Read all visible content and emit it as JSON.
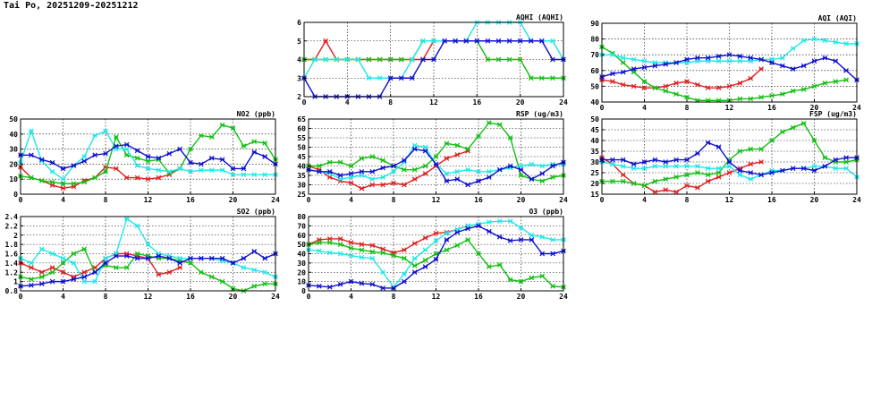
{
  "page": {
    "title": "Tai Po, 20251209-20251212"
  },
  "colors": {
    "s1": "#e02020",
    "s2": "#10c010",
    "s3": "#20e8e8",
    "s4": "#1010d0"
  },
  "chart_data": [
    {
      "id": "aqhi",
      "type": "line",
      "title": "AQHI (AQHI)",
      "xlim": [
        0,
        24
      ],
      "ylim": [
        2,
        6
      ],
      "xticks": [
        0,
        4,
        8,
        12,
        16,
        20,
        24
      ],
      "yticks": [
        2,
        3,
        4,
        5,
        6
      ],
      "series": [
        {
          "color": "s1",
          "values": [
            4,
            4,
            5,
            4,
            4,
            4,
            4,
            4,
            4,
            4,
            4,
            4,
            5,
            5,
            5,
            5
          ]
        },
        {
          "color": "s2",
          "values": [
            4,
            4,
            4,
            4,
            4,
            4,
            4,
            4,
            4,
            4,
            4,
            5,
            5,
            5,
            5,
            5,
            5,
            4,
            4,
            4,
            4,
            3,
            3,
            3,
            3
          ]
        },
        {
          "color": "s3",
          "values": [
            3,
            4,
            4,
            4,
            4,
            4,
            3,
            3,
            3,
            3,
            4,
            5,
            5,
            5,
            5,
            5,
            6,
            6,
            6,
            6,
            6,
            5,
            5,
            5,
            4
          ]
        },
        {
          "color": "s4",
          "values": [
            3,
            2,
            2,
            2,
            2,
            2,
            2,
            2,
            3,
            3,
            3,
            4,
            4,
            5,
            5,
            5,
            5,
            5,
            5,
            5,
            5,
            5,
            5,
            4,
            4
          ]
        }
      ]
    },
    {
      "id": "aqi",
      "type": "line",
      "title": "AQI (AQI)",
      "xlim": [
        0,
        24
      ],
      "ylim": [
        40,
        90
      ],
      "xticks": [
        0,
        4,
        8,
        12,
        16,
        20,
        24
      ],
      "yticks": [
        40,
        50,
        60,
        70,
        80,
        90
      ],
      "series": [
        {
          "color": "s1",
          "values": [
            54,
            53,
            51,
            50,
            49,
            49,
            50,
            52,
            53,
            51,
            49,
            49,
            50,
            52,
            55,
            61
          ]
        },
        {
          "color": "s2",
          "values": [
            75,
            71,
            65,
            59,
            53,
            49,
            47,
            45,
            43,
            41,
            41,
            41,
            41,
            42,
            42,
            43,
            44,
            45,
            47,
            48,
            50,
            52,
            53,
            54
          ]
        },
        {
          "color": "s3",
          "values": [
            70,
            70,
            68,
            67,
            66,
            65,
            65,
            65,
            65,
            66,
            66,
            66,
            66,
            66,
            66,
            67,
            67,
            68,
            74,
            79,
            80,
            79,
            78,
            77,
            77
          ]
        },
        {
          "color": "s4",
          "values": [
            56,
            58,
            59,
            61,
            62,
            63,
            64,
            65,
            67,
            68,
            68,
            69,
            70,
            69,
            68,
            67,
            65,
            63,
            61,
            63,
            66,
            68,
            66,
            60,
            54
          ]
        }
      ]
    },
    {
      "id": "no2",
      "type": "line",
      "title": "NO2 (ppb)",
      "xlim": [
        0,
        24
      ],
      "ylim": [
        0,
        50
      ],
      "xticks": [
        0,
        4,
        8,
        12,
        16,
        20,
        24
      ],
      "yticks": [
        0,
        10,
        20,
        30,
        40,
        50
      ],
      "series": [
        {
          "color": "s1",
          "values": [
            18,
            11,
            9,
            6,
            4,
            5,
            9,
            11,
            18,
            17,
            11,
            11,
            10,
            11,
            13,
            17
          ]
        },
        {
          "color": "s2",
          "values": [
            12,
            11,
            9,
            8,
            7,
            7,
            8,
            11,
            15,
            38,
            26,
            24,
            22,
            23,
            14,
            17,
            30,
            39,
            38,
            46,
            44,
            32,
            35,
            34,
            23
          ]
        },
        {
          "color": "s3",
          "values": [
            21,
            42,
            22,
            15,
            10,
            19,
            25,
            39,
            42,
            30,
            30,
            19,
            17,
            16,
            15,
            17,
            15,
            16,
            16,
            16,
            13,
            13,
            13,
            13,
            13
          ]
        },
        {
          "color": "s4",
          "values": [
            26,
            26,
            23,
            21,
            17,
            19,
            22,
            26,
            27,
            32,
            33,
            29,
            25,
            24,
            27,
            30,
            21,
            20,
            24,
            23,
            17,
            17,
            28,
            25,
            20
          ]
        }
      ]
    },
    {
      "id": "rsp",
      "type": "line",
      "title": "RSP (ug/m3)",
      "xlim": [
        0,
        24
      ],
      "ylim": [
        25,
        65
      ],
      "xticks": [
        0,
        4,
        8,
        12,
        16,
        20,
        24
      ],
      "yticks": [
        25,
        30,
        35,
        40,
        45,
        50,
        55,
        60,
        65
      ],
      "series": [
        {
          "color": "s1",
          "values": [
            40,
            38,
            34,
            32,
            31,
            28,
            30,
            30,
            31,
            30,
            33,
            36,
            40,
            44,
            46,
            48
          ]
        },
        {
          "color": "s2",
          "values": [
            40,
            40,
            42,
            42,
            40,
            44,
            45,
            43,
            40,
            38,
            38,
            40,
            45,
            52,
            51,
            49,
            56,
            63,
            62,
            55,
            35,
            33,
            32,
            34,
            35
          ]
        },
        {
          "color": "s3",
          "values": [
            38,
            37,
            36,
            33,
            34,
            35,
            33,
            34,
            37,
            42,
            51,
            50,
            41,
            36,
            37,
            38,
            37,
            37,
            38,
            39,
            40,
            41,
            40,
            41,
            41
          ]
        },
        {
          "color": "s4",
          "values": [
            38,
            37,
            37,
            35,
            36,
            37,
            37,
            39,
            40,
            43,
            49,
            48,
            41,
            32,
            33,
            30,
            32,
            34,
            38,
            40,
            38,
            33,
            36,
            40,
            42
          ]
        }
      ]
    },
    {
      "id": "fsp",
      "type": "line",
      "title": "FSP (ug/m3)",
      "xlim": [
        0,
        24
      ],
      "ylim": [
        15,
        50
      ],
      "xticks": [
        0,
        4,
        8,
        12,
        16,
        20,
        24
      ],
      "yticks": [
        15,
        20,
        25,
        30,
        35,
        40,
        45,
        50
      ],
      "series": [
        {
          "color": "s1",
          "values": [
            32,
            29,
            24,
            20,
            19,
            16,
            17,
            16,
            19,
            18,
            21,
            23,
            25,
            27,
            29,
            30
          ]
        },
        {
          "color": "s2",
          "values": [
            21,
            21,
            21,
            20,
            19,
            21,
            22,
            23,
            24,
            25,
            24,
            25,
            31,
            35,
            36,
            36,
            40,
            44,
            46,
            48,
            40,
            32,
            30,
            30,
            31
          ]
        },
        {
          "color": "s3",
          "values": [
            30,
            29,
            28,
            27,
            27,
            28,
            28,
            28,
            28,
            28,
            27,
            27,
            28,
            24,
            22,
            24,
            26,
            26,
            27,
            27,
            28,
            28,
            27,
            27,
            23
          ]
        },
        {
          "color": "s4",
          "values": [
            31,
            31,
            31,
            29,
            30,
            31,
            30,
            31,
            31,
            34,
            39,
            37,
            30,
            26,
            25,
            24,
            25,
            26,
            27,
            27,
            26,
            28,
            31,
            32,
            32
          ]
        }
      ]
    },
    {
      "id": "so2",
      "type": "line",
      "title": "SO2 (ppb)",
      "xlim": [
        0,
        24
      ],
      "ylim": [
        0.8,
        2.4
      ],
      "xticks": [
        0,
        4,
        8,
        12,
        16,
        20,
        24
      ],
      "yticks": [
        0.8,
        1.0,
        1.2,
        1.4,
        1.6,
        1.8,
        2.0,
        2.2,
        2.4
      ],
      "series": [
        {
          "color": "s1",
          "values": [
            1.4,
            1.3,
            1.2,
            1.3,
            1.2,
            1.1,
            1.2,
            1.3,
            1.5,
            1.6,
            1.6,
            1.55,
            1.5,
            1.15,
            1.2,
            1.3
          ]
        },
        {
          "color": "s2",
          "values": [
            1.1,
            1.05,
            1.1,
            1.2,
            1.4,
            1.6,
            1.7,
            1.2,
            1.35,
            1.3,
            1.3,
            1.6,
            1.55,
            1.5,
            1.5,
            1.45,
            1.4,
            1.2,
            1.1,
            1.0,
            0.85,
            0.8,
            0.9,
            0.95,
            0.95
          ]
        },
        {
          "color": "s3",
          "values": [
            1.5,
            1.4,
            1.7,
            1.6,
            1.5,
            1.4,
            1.0,
            1.0,
            1.5,
            1.6,
            2.35,
            2.2,
            1.8,
            1.6,
            1.55,
            1.5,
            1.5,
            1.5,
            1.5,
            1.45,
            1.4,
            1.3,
            1.25,
            1.2,
            1.1
          ]
        },
        {
          "color": "s4",
          "values": [
            0.9,
            0.92,
            0.95,
            1.0,
            1.0,
            1.05,
            1.1,
            1.2,
            1.4,
            1.55,
            1.55,
            1.5,
            1.5,
            1.55,
            1.5,
            1.4,
            1.5,
            1.5,
            1.5,
            1.5,
            1.4,
            1.5,
            1.65,
            1.5,
            1.6
          ]
        }
      ]
    },
    {
      "id": "o3",
      "type": "line",
      "title": "O3 (ppb)",
      "xlim": [
        0,
        24
      ],
      "ylim": [
        0,
        80
      ],
      "xticks": [
        0,
        4,
        8,
        12,
        16,
        20,
        24
      ],
      "yticks": [
        0,
        10,
        20,
        30,
        40,
        50,
        60,
        70,
        80
      ],
      "series": [
        {
          "color": "s1",
          "values": [
            50,
            55,
            56,
            56,
            52,
            50,
            49,
            45,
            41,
            44,
            51,
            57,
            62,
            63,
            66,
            70
          ]
        },
        {
          "color": "s2",
          "values": [
            50,
            52,
            52,
            50,
            46,
            44,
            42,
            41,
            38,
            35,
            27,
            33,
            40,
            44,
            49,
            55,
            40,
            26,
            28,
            12,
            10,
            14,
            16,
            5,
            4
          ]
        },
        {
          "color": "s3",
          "values": [
            44,
            43,
            41,
            40,
            38,
            36,
            35,
            20,
            4,
            18,
            35,
            44,
            54,
            62,
            66,
            70,
            72,
            74,
            75,
            75,
            68,
            60,
            58,
            55,
            55
          ]
        },
        {
          "color": "s4",
          "values": [
            6,
            5,
            4,
            7,
            10,
            8,
            7,
            3,
            3,
            10,
            20,
            26,
            34,
            55,
            63,
            67,
            70,
            64,
            58,
            54,
            55,
            55,
            40,
            40,
            43
          ]
        }
      ]
    }
  ]
}
